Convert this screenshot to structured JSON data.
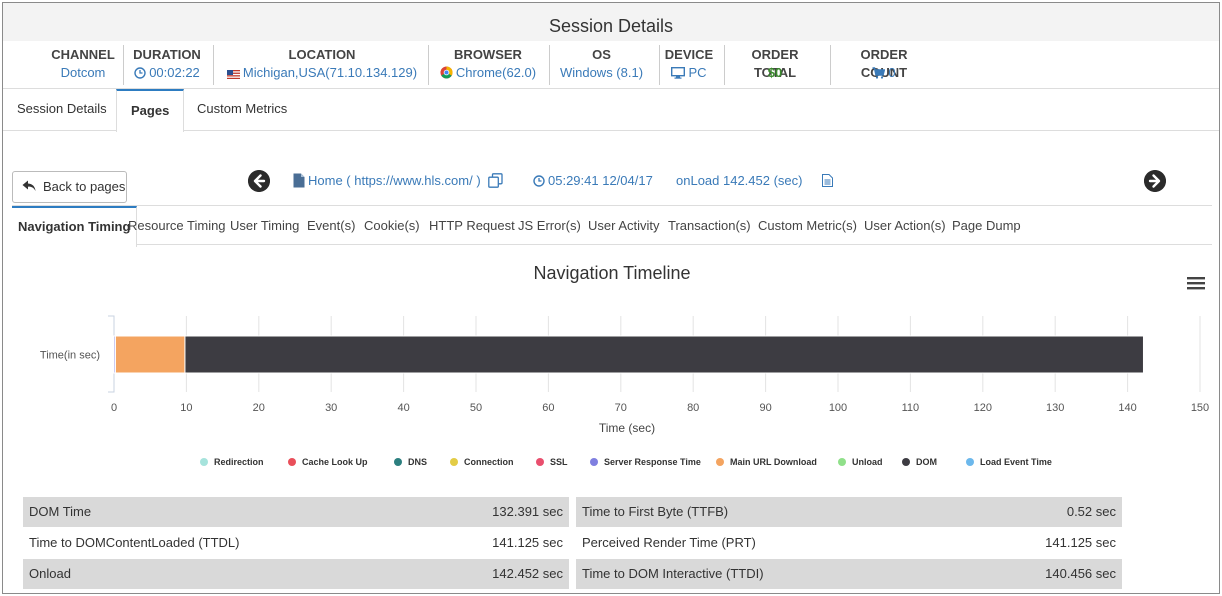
{
  "header": {
    "title": "Session Details"
  },
  "summary": {
    "channel": {
      "label": "CHANNEL",
      "value": "Dotcom"
    },
    "duration": {
      "label": "DURATION",
      "value": "00:02:22"
    },
    "location": {
      "label": "LOCATION",
      "value": "Michigan,USA(71.10.134.129)"
    },
    "browser": {
      "label": "BROWSER",
      "value": "Chrome(62.0)"
    },
    "os": {
      "label": "OS",
      "value": "Windows (8.1)"
    },
    "device": {
      "label": "DEVICE",
      "value": "PC"
    },
    "order_total": {
      "label": "ORDER TOTAL",
      "value": "$0"
    },
    "order_count": {
      "label": "ORDER COUNT",
      "value": "0"
    }
  },
  "main_tabs": [
    {
      "label": "Session Details"
    },
    {
      "label": "Pages"
    },
    {
      "label": "Custom Metrics"
    }
  ],
  "page_nav": {
    "back_label": "Back to pages",
    "page_link": "Home ( https://www.hls.com/ )",
    "timestamp": "05:29:41 12/04/17",
    "onload": "onLoad 142.452 (sec)"
  },
  "sub_tabs": [
    {
      "label": "Navigation Timing"
    },
    {
      "label": "Resource Timing"
    },
    {
      "label": "User Timing"
    },
    {
      "label": "Event(s)"
    },
    {
      "label": "Cookie(s)"
    },
    {
      "label": "HTTP Request"
    },
    {
      "label": "JS Error(s)"
    },
    {
      "label": "User Activity"
    },
    {
      "label": "Transaction(s)"
    },
    {
      "label": "Custom Metric(s)"
    },
    {
      "label": "User Action(s)"
    },
    {
      "label": "Page Dump"
    }
  ],
  "chart_data": {
    "type": "bar",
    "orientation": "horizontal",
    "stacked": true,
    "title": "Navigation Timeline",
    "xlabel": "Time (sec)",
    "ylabel": "",
    "categories": [
      "Time(in sec)"
    ],
    "xlim": [
      0,
      150
    ],
    "x_ticks": [
      0,
      10,
      20,
      30,
      40,
      50,
      60,
      70,
      80,
      90,
      100,
      110,
      120,
      130,
      140,
      150
    ],
    "grid": true,
    "legend_position": "bottom",
    "series": [
      {
        "name": "Redirection",
        "color": "#a6e3dc",
        "values": [
          0
        ]
      },
      {
        "name": "Cache Look Up",
        "color": "#e94f5a",
        "values": [
          0
        ]
      },
      {
        "name": "DNS",
        "color": "#2c7f7f",
        "values": [
          0
        ]
      },
      {
        "name": "Connection",
        "color": "#e3cc46",
        "values": [
          0
        ]
      },
      {
        "name": "SSL",
        "color": "#e94f6e",
        "values": [
          0
        ]
      },
      {
        "name": "Server Response Time",
        "color": "#7f7fe0",
        "values": [
          0.2
        ]
      },
      {
        "name": "Main URL Download",
        "color": "#f4a460",
        "values": [
          9.6
        ]
      },
      {
        "name": "Unload",
        "color": "#90e08a",
        "values": [
          0
        ]
      },
      {
        "name": "DOM",
        "color": "#3d3c42",
        "values": [
          132.391
        ]
      },
      {
        "name": "Load Event Time",
        "color": "#6cb8ec",
        "values": [
          0
        ]
      }
    ]
  },
  "metrics": {
    "left": [
      {
        "label": "DOM Time",
        "value": "132.391 sec"
      },
      {
        "label": "Time to DOMContentLoaded (TTDL)",
        "value": "141.125 sec"
      },
      {
        "label": "Onload",
        "value": "142.452 sec"
      }
    ],
    "right": [
      {
        "label": "Time to First Byte (TTFB)",
        "value": "0.52 sec"
      },
      {
        "label": "Perceived Render Time (PRT)",
        "value": "141.125 sec"
      },
      {
        "label": "Time to DOM Interactive (TTDI)",
        "value": "140.456 sec"
      }
    ]
  },
  "icons": {
    "duration": "clock-icon",
    "location": "us-flag-icon",
    "browser": "chrome-icon",
    "device": "monitor-icon",
    "order_count": "cart-icon",
    "menu": "hamburger-menu-icon"
  },
  "colors": {
    "link": "#3a7ab8",
    "accent": "#2d7cc1",
    "positive": "#3c8c2e"
  }
}
